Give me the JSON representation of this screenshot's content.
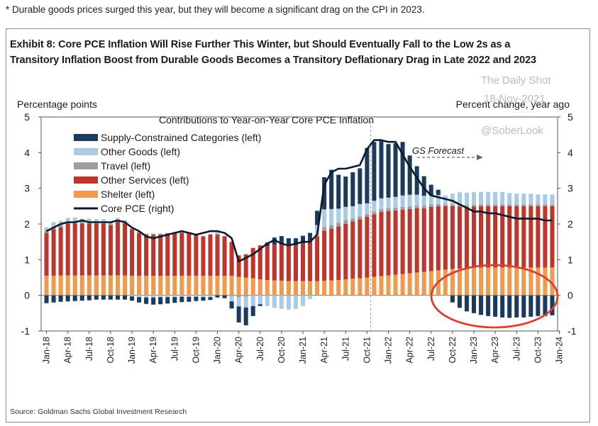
{
  "caption": "Durable goods prices surged this year, but they will become a significant drag on the CPI in 2023.",
  "title_line1": "Exhibit 8: Core PCE Inflation Will Rise Further This Winter, but Should Eventually Fall to the Low 2s as a",
  "title_line2": "Transitory Inflation Boost from Durable Goods Becomes a Transitory Deflationary Drag in Late 2022 and 2023",
  "source": "Source: Goldman Sachs Global Investment Research",
  "watermark": {
    "name": "The Daily Shot",
    "date": "18-Nov-2021",
    "handle": "@SoberLook"
  },
  "colors": {
    "supply": "#1b3a5c",
    "other_goods": "#a9cbe6",
    "travel": "#9e9e9e",
    "other_services": "#c0352b",
    "shelter": "#ef9a4f",
    "core_pce": "#0d1a2b",
    "highlight_circle": "#d9412e"
  },
  "chart_data": {
    "type": "bar",
    "stacked": true,
    "subtitle": "Contributions to Year-on-Year Core PCE Inflation",
    "ylabel_left": "Percentage points",
    "ylabel_right": "Percent change, year ago",
    "ylim": [
      -1,
      5
    ],
    "yticks": [
      -1,
      0,
      1,
      2,
      3,
      4,
      5
    ],
    "annotation": "GS Forecast",
    "forecast_start": "Nov-21",
    "legend_position": "top-left",
    "x_tick_labels": [
      "Jan-18",
      "Apr-18",
      "Jul-18",
      "Oct-18",
      "Jan-19",
      "Apr-19",
      "Jul-19",
      "Oct-19",
      "Jan-20",
      "Apr-20",
      "Jul-20",
      "Oct-20",
      "Jan-21",
      "Apr-21",
      "Jul-21",
      "Oct-21",
      "Jan-22",
      "Apr-22",
      "Jul-22",
      "Oct-22",
      "Jan-23",
      "Apr-23",
      "Jul-23",
      "Oct-23",
      "Jan-24"
    ],
    "x": [
      "Jan-18",
      "Feb-18",
      "Mar-18",
      "Apr-18",
      "May-18",
      "Jun-18",
      "Jul-18",
      "Aug-18",
      "Sep-18",
      "Oct-18",
      "Nov-18",
      "Dec-18",
      "Jan-19",
      "Feb-19",
      "Mar-19",
      "Apr-19",
      "May-19",
      "Jun-19",
      "Jul-19",
      "Aug-19",
      "Sep-19",
      "Oct-19",
      "Nov-19",
      "Dec-19",
      "Jan-20",
      "Feb-20",
      "Mar-20",
      "Apr-20",
      "May-20",
      "Jun-20",
      "Jul-20",
      "Aug-20",
      "Sep-20",
      "Oct-20",
      "Nov-20",
      "Dec-20",
      "Jan-21",
      "Feb-21",
      "Mar-21",
      "Apr-21",
      "May-21",
      "Jun-21",
      "Jul-21",
      "Aug-21",
      "Sep-21",
      "Oct-21",
      "Nov-21",
      "Dec-21",
      "Jan-22",
      "Feb-22",
      "Mar-22",
      "Apr-22",
      "May-22",
      "Jun-22",
      "Jul-22",
      "Aug-22",
      "Sep-22",
      "Oct-22",
      "Nov-22",
      "Dec-22",
      "Jan-23",
      "Feb-23",
      "Mar-23",
      "Apr-23",
      "May-23",
      "Jun-23",
      "Jul-23",
      "Aug-23",
      "Sep-23",
      "Oct-23",
      "Nov-23",
      "Dec-23"
    ],
    "series": [
      {
        "name": "Supply-Constrained Categories (left)",
        "key": "supply",
        "values": [
          -0.22,
          -0.2,
          -0.18,
          -0.17,
          -0.16,
          -0.15,
          -0.14,
          -0.12,
          -0.12,
          -0.12,
          -0.12,
          -0.12,
          -0.12,
          -0.15,
          -0.18,
          -0.2,
          -0.2,
          -0.18,
          -0.16,
          -0.15,
          -0.14,
          -0.12,
          -0.1,
          -0.08,
          -0.06,
          -0.08,
          -0.2,
          -0.45,
          -0.5,
          -0.28,
          -0.05,
          0.1,
          0.2,
          0.2,
          0.2,
          0.2,
          0.22,
          0.25,
          0.4,
          0.9,
          1.1,
          0.95,
          0.85,
          0.95,
          1.0,
          1.55,
          1.65,
          1.6,
          1.5,
          1.5,
          1.5,
          1.1,
          0.8,
          0.55,
          0.3,
          0.15,
          0.0,
          -0.2,
          -0.35,
          -0.45,
          -0.5,
          -0.55,
          -0.58,
          -0.6,
          -0.62,
          -0.63,
          -0.62,
          -0.62,
          -0.6,
          -0.58,
          -0.58,
          -0.56
        ]
      },
      {
        "name": "Other Goods  (left)",
        "key": "other_goods",
        "values": [
          0.1,
          0.12,
          0.12,
          0.1,
          0.1,
          0.08,
          0.08,
          0.08,
          0.08,
          0.06,
          0.06,
          0.05,
          -0.03,
          -0.05,
          -0.06,
          -0.06,
          -0.05,
          -0.05,
          -0.05,
          -0.04,
          -0.04,
          -0.04,
          -0.05,
          -0.05,
          0.05,
          0.0,
          -0.15,
          -0.25,
          -0.3,
          -0.3,
          -0.25,
          -0.3,
          -0.35,
          -0.38,
          -0.4,
          -0.38,
          -0.3,
          -0.1,
          0.3,
          0.5,
          0.45,
          0.4,
          0.38,
          0.35,
          0.35,
          0.3,
          0.3,
          0.3,
          0.3,
          0.3,
          0.32,
          0.32,
          0.3,
          0.28,
          0.25,
          0.25,
          0.25,
          0.3,
          0.35,
          0.35,
          0.35,
          0.35,
          0.35,
          0.35,
          0.35,
          0.32,
          0.3,
          0.3,
          0.3,
          0.28,
          0.28,
          0.28
        ]
      },
      {
        "name": "Travel (left)",
        "key": "travel",
        "values": [
          0.06,
          0.08,
          0.06,
          0.06,
          0.07,
          0.06,
          0.06,
          0.05,
          0.05,
          0.05,
          0.05,
          0.05,
          0.03,
          0.03,
          0.03,
          0.03,
          0.03,
          0.02,
          0.02,
          0.02,
          0.02,
          0.02,
          0.02,
          0.02,
          0.02,
          0.02,
          -0.02,
          -0.06,
          -0.04,
          0.0,
          0.0,
          0.0,
          0.0,
          0.0,
          0.0,
          0.0,
          0.0,
          0.0,
          0.02,
          0.1,
          0.1,
          0.1,
          0.1,
          0.08,
          0.08,
          0.08,
          0.08,
          0.08,
          0.08,
          0.08,
          0.08,
          0.08,
          0.08,
          0.07,
          0.07,
          0.06,
          0.05,
          0.05,
          0.05,
          0.05,
          0.05,
          0.05,
          0.05,
          0.05,
          0.05,
          0.05,
          0.05,
          0.05,
          0.05,
          0.05,
          0.05,
          0.05
        ]
      },
      {
        "name": "Other Services  (left)",
        "key": "other_services",
        "values": [
          1.2,
          1.3,
          1.35,
          1.45,
          1.45,
          1.45,
          1.45,
          1.45,
          1.45,
          1.4,
          1.5,
          1.45,
          1.3,
          1.2,
          1.15,
          1.15,
          1.15,
          1.18,
          1.2,
          1.2,
          1.2,
          1.15,
          1.1,
          1.15,
          1.15,
          1.1,
          0.95,
          0.6,
          0.65,
          0.85,
          0.95,
          0.95,
          1.0,
          1.05,
          1.0,
          1.0,
          1.05,
          1.1,
          1.25,
          1.4,
          1.45,
          1.5,
          1.55,
          1.6,
          1.65,
          1.7,
          1.75,
          1.8,
          1.8,
          1.8,
          1.8,
          1.8,
          1.8,
          1.78,
          1.8,
          1.8,
          1.78,
          1.76,
          1.74,
          1.72,
          1.72,
          1.72,
          1.72,
          1.72,
          1.72,
          1.72,
          1.72,
          1.72,
          1.72,
          1.72,
          1.72,
          1.72
        ]
      },
      {
        "name": "Shelter (left)",
        "key": "shelter",
        "values": [
          0.55,
          0.55,
          0.56,
          0.56,
          0.56,
          0.56,
          0.56,
          0.56,
          0.56,
          0.56,
          0.56,
          0.56,
          0.55,
          0.55,
          0.55,
          0.55,
          0.55,
          0.55,
          0.55,
          0.55,
          0.55,
          0.55,
          0.55,
          0.55,
          0.55,
          0.55,
          0.55,
          0.52,
          0.5,
          0.48,
          0.45,
          0.43,
          0.42,
          0.41,
          0.4,
          0.4,
          0.4,
          0.4,
          0.4,
          0.41,
          0.42,
          0.43,
          0.45,
          0.47,
          0.48,
          0.5,
          0.52,
          0.54,
          0.56,
          0.58,
          0.6,
          0.62,
          0.64,
          0.66,
          0.68,
          0.7,
          0.72,
          0.74,
          0.75,
          0.76,
          0.77,
          0.78,
          0.78,
          0.78,
          0.78,
          0.78,
          0.78,
          0.78,
          0.78,
          0.78,
          0.78,
          0.78
        ]
      }
    ],
    "line": {
      "name": "Core PCE (right)",
      "key": "core_pce",
      "values": [
        1.8,
        1.9,
        2.0,
        2.05,
        2.05,
        2.1,
        2.05,
        2.05,
        2.05,
        2.05,
        2.1,
        2.05,
        1.9,
        1.8,
        1.65,
        1.6,
        1.65,
        1.7,
        1.75,
        1.8,
        1.75,
        1.7,
        1.75,
        1.8,
        1.8,
        1.75,
        1.6,
        0.95,
        1.05,
        1.15,
        1.3,
        1.45,
        1.55,
        1.45,
        1.4,
        1.45,
        1.5,
        1.5,
        1.7,
        3.1,
        3.45,
        3.55,
        3.55,
        3.6,
        3.65,
        4.1,
        4.35,
        4.35,
        4.3,
        4.3,
        3.95,
        3.6,
        3.3,
        3.0,
        2.8,
        2.75,
        2.7,
        2.65,
        2.55,
        2.45,
        2.35,
        2.35,
        2.3,
        2.3,
        2.25,
        2.2,
        2.15,
        2.15,
        2.15,
        2.15,
        2.1,
        2.1
      ]
    }
  }
}
